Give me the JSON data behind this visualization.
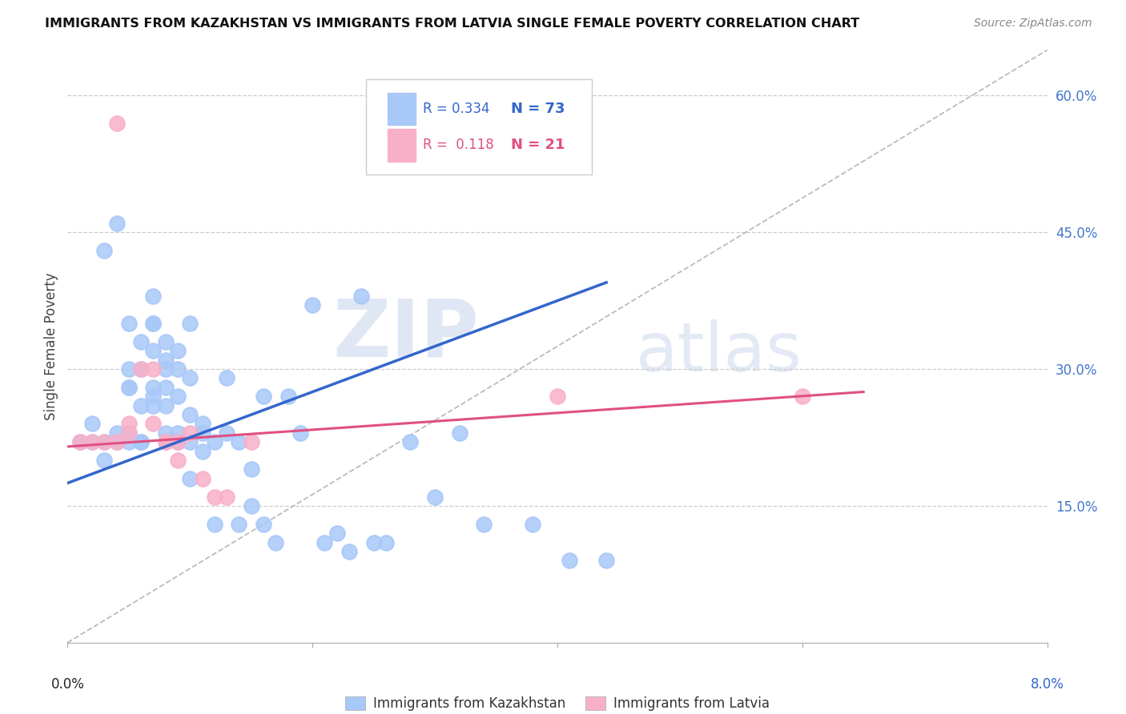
{
  "title": "IMMIGRANTS FROM KAZAKHSTAN VS IMMIGRANTS FROM LATVIA SINGLE FEMALE POVERTY CORRELATION CHART",
  "source": "Source: ZipAtlas.com",
  "ylabel": "Single Female Poverty",
  "y_ticks": [
    0.15,
    0.3,
    0.45,
    0.6
  ],
  "y_tick_labels": [
    "15.0%",
    "30.0%",
    "45.0%",
    "60.0%"
  ],
  "x_lim": [
    0.0,
    0.08
  ],
  "y_lim": [
    0.0,
    0.65
  ],
  "legend_r1": "R = 0.334",
  "legend_n1": "N = 73",
  "legend_r2": "R =  0.118",
  "legend_n2": "N = 21",
  "legend_label1": "Immigrants from Kazakhstan",
  "legend_label2": "Immigrants from Latvia",
  "color_kaz": "#a8c8f8",
  "color_lat": "#f8b0c8",
  "color_kaz_line": "#3366cc",
  "color_lat_line": "#e05080",
  "color_diag": "#bbbbbb",
  "watermark_zip": "ZIP",
  "watermark_atlas": "atlas",
  "kaz_x": [
    0.001,
    0.002,
    0.002,
    0.003,
    0.003,
    0.003,
    0.004,
    0.004,
    0.004,
    0.005,
    0.005,
    0.005,
    0.005,
    0.005,
    0.005,
    0.006,
    0.006,
    0.006,
    0.006,
    0.006,
    0.007,
    0.007,
    0.007,
    0.007,
    0.007,
    0.007,
    0.007,
    0.008,
    0.008,
    0.008,
    0.008,
    0.008,
    0.008,
    0.009,
    0.009,
    0.009,
    0.009,
    0.009,
    0.01,
    0.01,
    0.01,
    0.01,
    0.01,
    0.011,
    0.011,
    0.011,
    0.012,
    0.012,
    0.013,
    0.013,
    0.014,
    0.014,
    0.015,
    0.015,
    0.016,
    0.016,
    0.017,
    0.018,
    0.019,
    0.02,
    0.021,
    0.022,
    0.023,
    0.024,
    0.025,
    0.026,
    0.028,
    0.03,
    0.032,
    0.034,
    0.038,
    0.041,
    0.044
  ],
  "kaz_y": [
    0.22,
    0.22,
    0.24,
    0.43,
    0.22,
    0.2,
    0.46,
    0.23,
    0.22,
    0.35,
    0.28,
    0.3,
    0.22,
    0.28,
    0.23,
    0.26,
    0.3,
    0.22,
    0.33,
    0.22,
    0.32,
    0.38,
    0.35,
    0.26,
    0.28,
    0.27,
    0.35,
    0.33,
    0.31,
    0.3,
    0.28,
    0.26,
    0.23,
    0.3,
    0.32,
    0.27,
    0.23,
    0.22,
    0.29,
    0.25,
    0.35,
    0.22,
    0.18,
    0.23,
    0.24,
    0.21,
    0.22,
    0.13,
    0.23,
    0.29,
    0.22,
    0.13,
    0.15,
    0.19,
    0.13,
    0.27,
    0.11,
    0.27,
    0.23,
    0.37,
    0.11,
    0.12,
    0.1,
    0.38,
    0.11,
    0.11,
    0.22,
    0.16,
    0.23,
    0.13,
    0.13,
    0.09,
    0.09
  ],
  "lat_x": [
    0.001,
    0.002,
    0.003,
    0.004,
    0.004,
    0.005,
    0.005,
    0.006,
    0.007,
    0.007,
    0.008,
    0.008,
    0.009,
    0.009,
    0.01,
    0.011,
    0.012,
    0.013,
    0.015,
    0.04,
    0.06
  ],
  "lat_y": [
    0.22,
    0.22,
    0.22,
    0.57,
    0.22,
    0.23,
    0.24,
    0.3,
    0.24,
    0.3,
    0.22,
    0.22,
    0.22,
    0.2,
    0.23,
    0.18,
    0.16,
    0.16,
    0.22,
    0.27,
    0.27
  ],
  "kaz_line_x0": 0.0,
  "kaz_line_y0": 0.175,
  "kaz_line_x1": 0.044,
  "kaz_line_y1": 0.395,
  "lat_line_x0": 0.0,
  "lat_line_y0": 0.215,
  "lat_line_x1": 0.065,
  "lat_line_y1": 0.275
}
